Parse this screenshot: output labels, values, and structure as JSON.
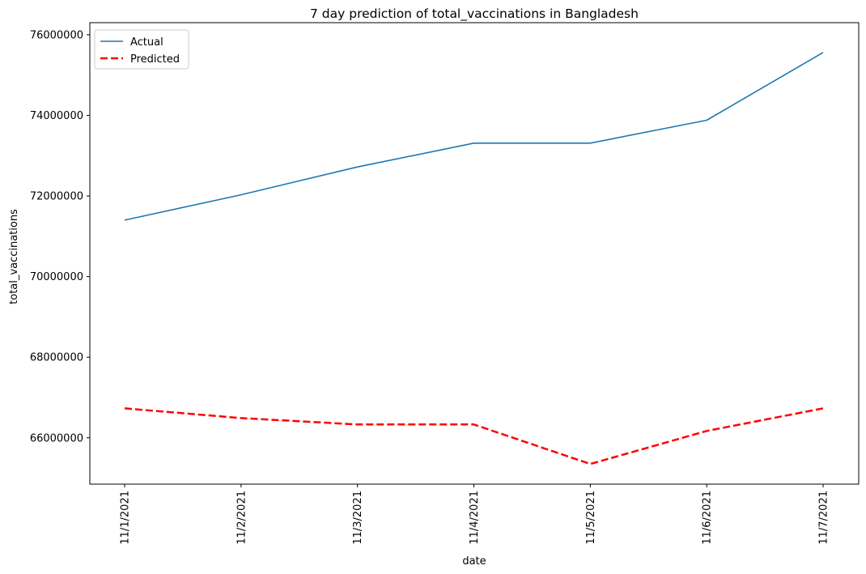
{
  "chart_data": {
    "type": "line",
    "title": "7 day prediction of total_vaccinations in Bangladesh",
    "xlabel": "date",
    "ylabel": "total_vaccinations",
    "categories": [
      "11/1/2021",
      "11/2/2021",
      "11/3/2021",
      "11/4/2021",
      "11/5/2021",
      "11/6/2021",
      "11/7/2021"
    ],
    "ylim": [
      64850000,
      76300000
    ],
    "yticks": [
      66000000,
      68000000,
      70000000,
      72000000,
      74000000,
      76000000
    ],
    "ytick_labels": [
      "66000000",
      "68000000",
      "70000000",
      "72000000",
      "74000000",
      "76000000"
    ],
    "legend_position": "top-left",
    "grid": false,
    "series": [
      {
        "name": "Actual",
        "color": "#1f77b4",
        "style": "solid",
        "values": [
          71400000,
          72030000,
          72720000,
          73310000,
          73310000,
          73880000,
          75560000
        ]
      },
      {
        "name": "Predicted",
        "color": "#ff0000",
        "style": "dashed",
        "values": [
          66730000,
          66490000,
          66330000,
          66330000,
          65350000,
          66170000,
          66730000
        ]
      }
    ]
  }
}
